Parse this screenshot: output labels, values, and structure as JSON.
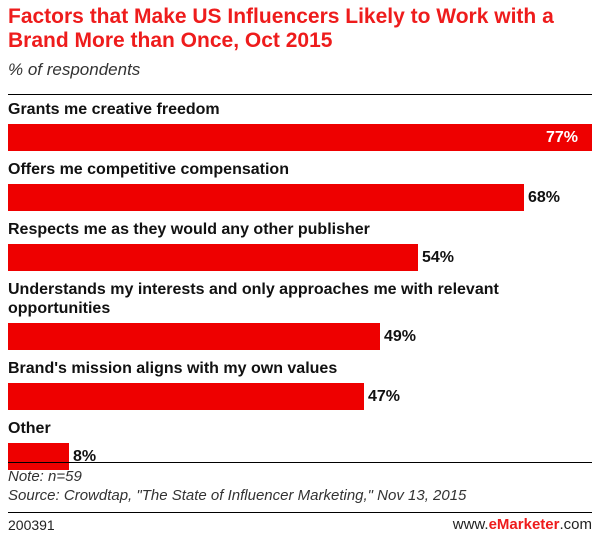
{
  "chart_data": {
    "type": "bar",
    "orientation": "horizontal",
    "title": "Factors that Make US Influencers Likely to Work with a Brand More than Once, Oct 2015",
    "subtitle": "% of respondents",
    "categories": [
      "Grants me creative freedom",
      "Offers me competitive compensation",
      "Respects me as they would any other publisher",
      "Understands my interests and only approaches me with relevant opportunities",
      "Brand's mission aligns with my own values",
      "Other"
    ],
    "values": [
      77,
      68,
      54,
      49,
      47,
      8
    ],
    "value_labels": [
      "77%",
      "68%",
      "54%",
      "49%",
      "47%",
      "8%"
    ],
    "xlim": [
      0,
      77
    ],
    "bar_color": "#ee0000",
    "grid": false,
    "legend": false
  },
  "footer": {
    "note": "Note: n=59",
    "source": "Source: Crowdtap, \"The State of Influencer Marketing,\" Nov 13, 2015",
    "code": "200391",
    "brand_prefix": "www.",
    "brand_name": "eMarketer",
    "brand_suffix": ".com"
  }
}
